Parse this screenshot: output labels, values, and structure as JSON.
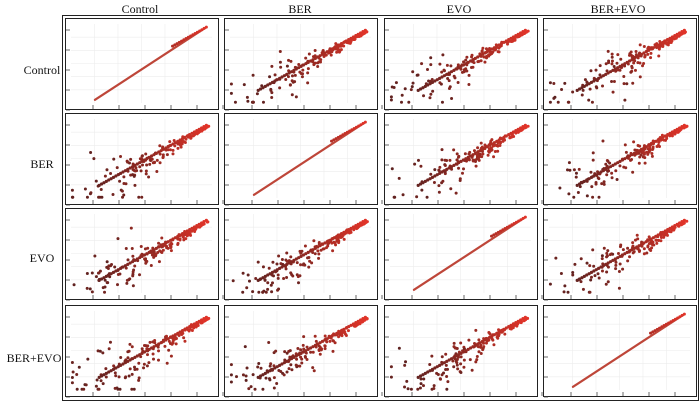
{
  "chart_data": {
    "type": "scatter",
    "layout": "pairwise scatter matrix",
    "samples": [
      "Control",
      "BER",
      "EVO",
      "BER+EVO"
    ],
    "col_labels": [
      "Control",
      "BER",
      "EVO",
      "BER+EVO"
    ],
    "row_labels": [
      "Control",
      "BER",
      "EVO",
      "BER+EVO"
    ],
    "axis_range": [
      0,
      1
    ],
    "grid": true,
    "colors": {
      "low": "#4a1f1f",
      "mid": "#9a2a22",
      "high": "#e8352a",
      "panel_border": "#222222",
      "grid": "#ececec"
    },
    "scatter_spread": [
      [
        0.0,
        0.12,
        0.1,
        0.14
      ],
      [
        0.12,
        0.0,
        0.11,
        0.13
      ],
      [
        0.1,
        0.11,
        0.0,
        0.12
      ],
      [
        0.14,
        0.13,
        0.12,
        0.0
      ]
    ]
  }
}
